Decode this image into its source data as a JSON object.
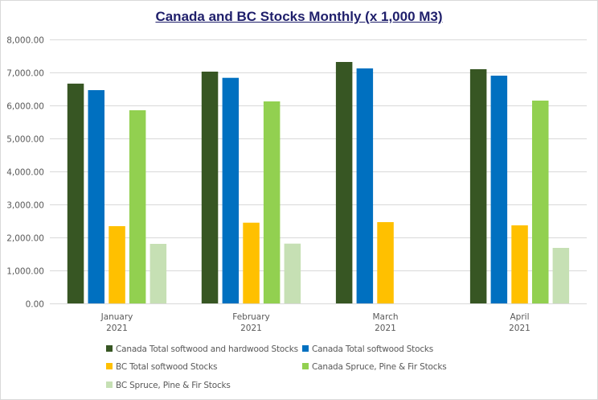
{
  "chart_data": {
    "type": "bar",
    "title": "Canada and BC Stocks  Monthly (x 1,000 M3)",
    "xlabel": "",
    "ylabel": "",
    "ylim": [
      0,
      8000
    ],
    "yticks": [
      0,
      1000,
      2000,
      3000,
      4000,
      5000,
      6000,
      7000,
      8000
    ],
    "ytick_labels": [
      "0.00",
      "1,000.00",
      "2,000.00",
      "3,000.00",
      "4,000.00",
      "5,000.00",
      "6,000.00",
      "7,000.00",
      "8,000.00"
    ],
    "grid": true,
    "legend_position": "bottom",
    "categories": [
      {
        "month": "January",
        "year": "2021"
      },
      {
        "month": "February",
        "year": "2021"
      },
      {
        "month": "March",
        "year": "2021"
      },
      {
        "month": "April",
        "year": "2021"
      }
    ],
    "series": [
      {
        "name": "Canada Total softwood and hardwood Stocks",
        "color": "#375623",
        "values": [
          6660,
          7024,
          7317,
          7098
        ]
      },
      {
        "name": "Canada Total softwood Stocks",
        "color": "#0070c0",
        "values": [
          6463,
          6837,
          7122,
          6902
        ]
      },
      {
        "name": "BC Total softwood Stocks",
        "color": "#ffc000",
        "values": [
          2341,
          2446,
          2463,
          2366
        ]
      },
      {
        "name": "Canada Spruce, Pine & Fir Stocks",
        "color": "#92d050",
        "values": [
          5854,
          6122,
          null,
          6146
        ]
      },
      {
        "name": "BC Spruce, Pine & Fir Stocks",
        "color": "#c6e0b4",
        "values": [
          1805,
          1812,
          null,
          1683
        ]
      }
    ]
  }
}
